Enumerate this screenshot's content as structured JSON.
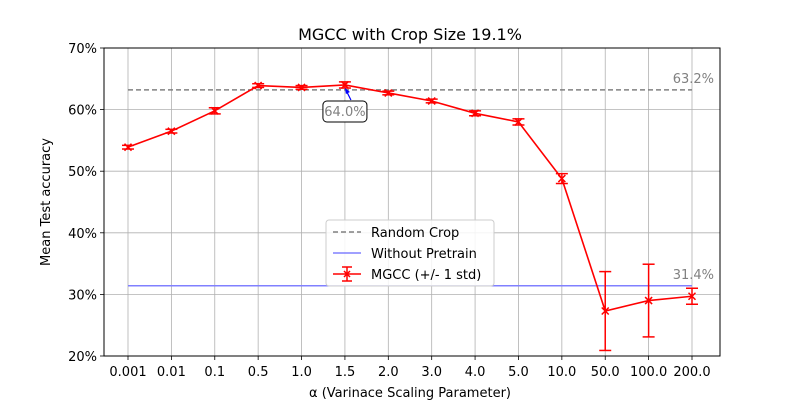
{
  "chart_data": {
    "type": "line",
    "title": "MGCC with Crop Size 19.1%",
    "xlabel": "α (Varinace Scaling Parameter)",
    "ylabel": "Mean Test accuracy",
    "categories": [
      "0.001",
      "0.01",
      "0.1",
      "0.5",
      "1.0",
      "1.5",
      "2.0",
      "3.0",
      "4.0",
      "5.0",
      "10.0",
      "50.0",
      "100.0",
      "200.0"
    ],
    "ylim": [
      20,
      70
    ],
    "yticks": [
      20,
      30,
      40,
      50,
      60,
      70
    ],
    "ytick_labels": [
      "20%",
      "30%",
      "40%",
      "50%",
      "60%",
      "70%"
    ],
    "grid": true,
    "legend_position": "center",
    "series": [
      {
        "name": "MGCC (+/- 1 std)",
        "color": "#ff0000",
        "values": [
          53.9,
          56.5,
          59.8,
          63.9,
          63.6,
          64.0,
          62.7,
          61.4,
          59.4,
          58.0,
          48.8,
          27.3,
          29.0,
          29.7
        ],
        "std": [
          0.3,
          0.3,
          0.5,
          0.3,
          0.3,
          0.5,
          0.3,
          0.3,
          0.4,
          0.5,
          0.8,
          6.4,
          5.9,
          1.3
        ]
      }
    ],
    "reference_lines": [
      {
        "name": "Random Crop",
        "value": 63.2,
        "label": "63.2%",
        "color": "#808080",
        "style": "dashed"
      },
      {
        "name": "Without Pretrain",
        "value": 31.4,
        "label": "31.4%",
        "color": "#8080ff",
        "style": "solid"
      }
    ],
    "annotation": {
      "text": "64.0%",
      "category": "1.5",
      "value": 64.0
    }
  }
}
